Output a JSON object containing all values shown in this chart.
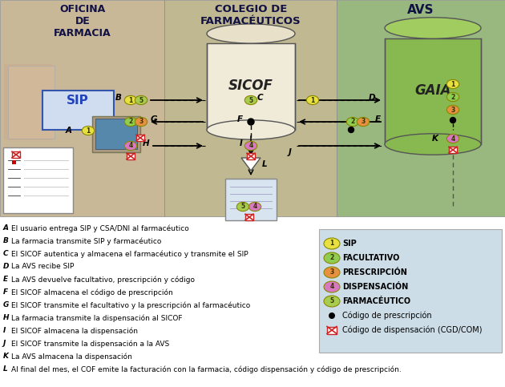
{
  "fig_width": 6.3,
  "fig_height": 4.83,
  "bg_color": "#ffffff",
  "badge_colors": {
    "1": "#e8e040",
    "2": "#90cc50",
    "3": "#e89040",
    "4": "#d878c0",
    "5": "#a8cc50"
  },
  "sicof_body": "#f0ead8",
  "sicof_top": "#e8e0c8",
  "gaia_body": "#88b850",
  "gaia_top": "#a0cc60",
  "section_farmacia": "#c8b898",
  "section_colegio": "#c0b890",
  "section_avs": "#98b880",
  "legend_items": [
    {
      "num": "1",
      "color": "#e8e040",
      "label": "SIP"
    },
    {
      "num": "2",
      "color": "#90cc50",
      "label": "FACULTATIVO"
    },
    {
      "num": "3",
      "color": "#e89040",
      "label": "PRESCRIPCIÓN"
    },
    {
      "num": "4",
      "color": "#d878c0",
      "label": "DISPENSACIÓN"
    },
    {
      "num": "5",
      "color": "#a8cc50",
      "label": "FARMACÉUTICO"
    }
  ],
  "annotations": [
    {
      "key": "A",
      "text": "El usuario entrega SIP y CSA/DNI al farmacéutico"
    },
    {
      "key": "B",
      "text": "La farmacia transmite SIP y farmacéutico"
    },
    {
      "key": "C",
      "text": "El SICOF autentica y almacena el farmacéutico y transmite el SIP"
    },
    {
      "key": "D",
      "text": "La AVS recibe SIP"
    },
    {
      "key": "E",
      "text": "La AVS devuelve facultativo, prescripción y código"
    },
    {
      "key": "F",
      "text": "El SICOF almacena el código de prescripción"
    },
    {
      "key": "G",
      "text": "El SICOF transmite el facultativo y la prescripción al farmacéutico"
    },
    {
      "key": "H",
      "text": "La farmacia transmite la dispensación al SICOF"
    },
    {
      "key": "I",
      "text": "El SICOF almacena la dispensación"
    },
    {
      "key": "J",
      "text": "El SICOF transmite la dispensación a la AVS"
    },
    {
      "key": "K",
      "text": "La AVS almacena la dispensación"
    },
    {
      "key": "L",
      "text": "Al final del mes, el COF emite la facturación con la farmacia, código dispensación y código de prescripción."
    }
  ]
}
